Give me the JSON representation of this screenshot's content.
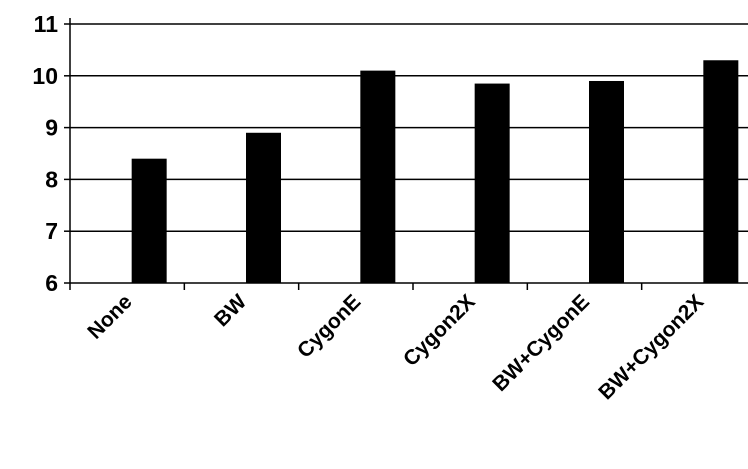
{
  "chart_data": {
    "type": "bar",
    "title": "",
    "xlabel": "",
    "ylabel": "",
    "categories": [
      "None",
      "BW",
      "CygonE",
      "Cygon2X",
      "BW+CygonE",
      "BW+Cygon2X"
    ],
    "values": [
      8.4,
      8.9,
      10.1,
      9.85,
      9.9,
      10.3
    ],
    "ylim": [
      6,
      11
    ],
    "yticks": [
      6,
      7,
      8,
      9,
      10,
      11
    ],
    "grid": true,
    "legend": "none",
    "bar_color": "#000000",
    "grid_color": "#000000"
  }
}
